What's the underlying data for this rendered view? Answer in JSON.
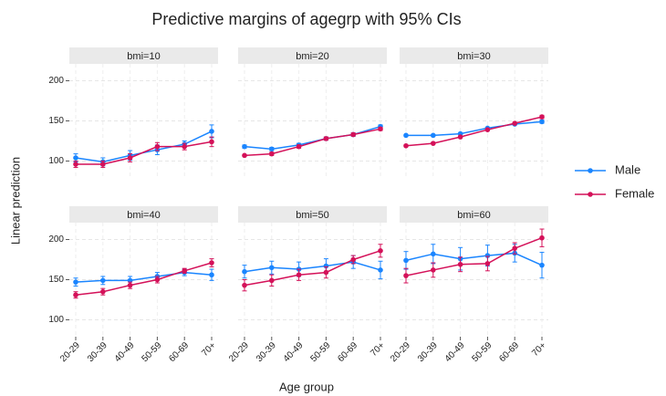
{
  "title": "Predictive margins of agegrp with 95% CIs",
  "x_label": "Age group",
  "y_label": "Linear prediction",
  "categories": [
    "20-29",
    "30-39",
    "40-49",
    "50-59",
    "60-69",
    "70+"
  ],
  "ylim": [
    79,
    221
  ],
  "yticks": [
    100,
    150,
    200
  ],
  "grid": true,
  "legend_position": "right",
  "series": [
    {
      "name": "Male",
      "color": "#1a85ff"
    },
    {
      "name": "Female",
      "color": "#d41159"
    }
  ],
  "chart_data": [
    {
      "type": "line",
      "title": "bmi=10",
      "series": [
        {
          "values": [
            104,
            99,
            107,
            114,
            121,
            137
          ],
          "errors": [
            5,
            5,
            6,
            6,
            4,
            8
          ]
        },
        {
          "values": [
            96,
            96,
            104,
            118,
            118,
            124
          ],
          "errors": [
            4,
            4,
            5,
            5,
            4,
            6
          ]
        }
      ]
    },
    {
      "type": "line",
      "title": "bmi=20",
      "series": [
        {
          "values": [
            118,
            115,
            120,
            128,
            133,
            143
          ],
          "errors": [
            2,
            2,
            2,
            2,
            2,
            2
          ]
        },
        {
          "values": [
            107,
            109,
            118,
            128,
            133,
            140
          ],
          "errors": [
            1,
            2,
            2,
            2,
            2,
            2
          ]
        }
      ]
    },
    {
      "type": "line",
      "title": "bmi=30",
      "series": [
        {
          "values": [
            132,
            132,
            134,
            141,
            146,
            149
          ],
          "errors": [
            1,
            1,
            1,
            1,
            1,
            2
          ]
        },
        {
          "values": [
            119,
            122,
            130,
            139,
            147,
            155
          ],
          "errors": [
            1,
            1,
            1,
            1,
            1,
            2
          ]
        }
      ]
    },
    {
      "type": "line",
      "title": "bmi=40",
      "series": [
        {
          "values": [
            147,
            149,
            149,
            154,
            159,
            156
          ],
          "errors": [
            5,
            5,
            5,
            5,
            4,
            7
          ]
        },
        {
          "values": [
            131,
            135,
            143,
            150,
            161,
            171
          ],
          "errors": [
            4,
            4,
            4,
            4,
            3,
            5
          ]
        }
      ]
    },
    {
      "type": "line",
      "title": "bmi=50",
      "series": [
        {
          "values": [
            160,
            165,
            163,
            167,
            172,
            162
          ],
          "errors": [
            8,
            8,
            9,
            9,
            8,
            11
          ]
        },
        {
          "values": [
            143,
            149,
            156,
            159,
            175,
            186
          ],
          "errors": [
            7,
            7,
            7,
            7,
            5,
            8
          ]
        }
      ]
    },
    {
      "type": "line",
      "title": "bmi=60",
      "series": [
        {
          "values": [
            174,
            182,
            176,
            180,
            183,
            168
          ],
          "errors": [
            11,
            12,
            14,
            13,
            11,
            16
          ]
        },
        {
          "values": [
            155,
            162,
            169,
            170,
            189,
            202
          ],
          "errors": [
            9,
            9,
            9,
            9,
            7,
            11
          ]
        }
      ]
    }
  ]
}
